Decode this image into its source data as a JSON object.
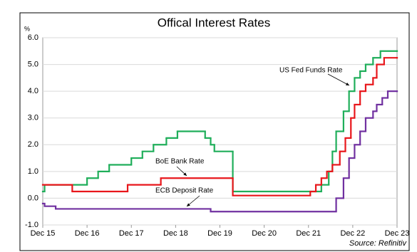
{
  "chart_data": {
    "type": "line",
    "title": "Offical Interest Rates",
    "ylabel": "%",
    "source": "Source: Refinitiv",
    "xlim": [
      2015.917,
      2023.917
    ],
    "xticks": [
      {
        "value": 2015.917,
        "label": "Dec 15"
      },
      {
        "value": 2016.917,
        "label": "Dec 16"
      },
      {
        "value": 2017.917,
        "label": "Dec 17"
      },
      {
        "value": 2018.917,
        "label": "Dec 18"
      },
      {
        "value": 2019.917,
        "label": "Dec 19"
      },
      {
        "value": 2020.917,
        "label": "Dec 20"
      },
      {
        "value": 2021.917,
        "label": "Dec 21"
      },
      {
        "value": 2022.917,
        "label": "Dec 22"
      },
      {
        "value": 2023.917,
        "label": "Dec 23"
      }
    ],
    "ylim": [
      -1,
      6
    ],
    "yticks": [
      {
        "value": -1,
        "label": "-1.0"
      },
      {
        "value": 0,
        "label": "0.0"
      },
      {
        "value": 1,
        "label": "1.0"
      },
      {
        "value": 2,
        "label": "2.0"
      },
      {
        "value": 3,
        "label": "3.0"
      },
      {
        "value": 4,
        "label": "4.0"
      },
      {
        "value": 5,
        "label": "5.0"
      },
      {
        "value": 6,
        "label": "6.0"
      }
    ],
    "grid": true,
    "step": true,
    "series": [
      {
        "name": "US Fed Funds Rate",
        "color": "#1fae5a",
        "x": [
          2015.917,
          2015.958,
          2016.917,
          2017.167,
          2017.417,
          2017.917,
          2018.167,
          2018.417,
          2018.708,
          2018.958,
          2019.583,
          2019.708,
          2019.792,
          2020.208,
          2022.208,
          2022.375,
          2022.458,
          2022.542,
          2022.708,
          2022.833,
          2022.958,
          2023.083,
          2023.208,
          2023.375,
          2023.542,
          2023.917
        ],
        "values": [
          0.25,
          0.5,
          0.75,
          1.0,
          1.25,
          1.5,
          1.75,
          2.0,
          2.25,
          2.5,
          2.25,
          2.0,
          1.75,
          0.25,
          0.5,
          1.0,
          1.75,
          2.5,
          3.25,
          4.0,
          4.5,
          4.75,
          5.0,
          5.25,
          5.5,
          5.5
        ]
      },
      {
        "name": "BoE Bank Rate",
        "color": "#e8161b",
        "x": [
          2015.917,
          2016.583,
          2017.833,
          2018.583,
          2020.208,
          2021.958,
          2022.083,
          2022.208,
          2022.333,
          2022.458,
          2022.625,
          2022.75,
          2022.875,
          2022.958,
          2023.083,
          2023.208,
          2023.375,
          2023.458,
          2023.625,
          2023.917
        ],
        "values": [
          0.5,
          0.25,
          0.5,
          0.75,
          0.1,
          0.25,
          0.5,
          0.75,
          1.0,
          1.25,
          1.75,
          2.25,
          3.0,
          3.5,
          4.0,
          4.25,
          4.5,
          5.0,
          5.25,
          5.25
        ]
      },
      {
        "name": "ECB Deposit Rate",
        "color": "#7030a0",
        "x": [
          2015.917,
          2015.958,
          2016.208,
          2019.708,
          2022.542,
          2022.708,
          2022.833,
          2022.958,
          2023.083,
          2023.208,
          2023.375,
          2023.458,
          2023.583,
          2023.708,
          2023.917
        ],
        "values": [
          -0.2,
          -0.3,
          -0.4,
          -0.5,
          0.0,
          0.75,
          1.5,
          2.0,
          2.5,
          3.0,
          3.25,
          3.5,
          3.75,
          4.0,
          4.0
        ]
      }
    ]
  }
}
